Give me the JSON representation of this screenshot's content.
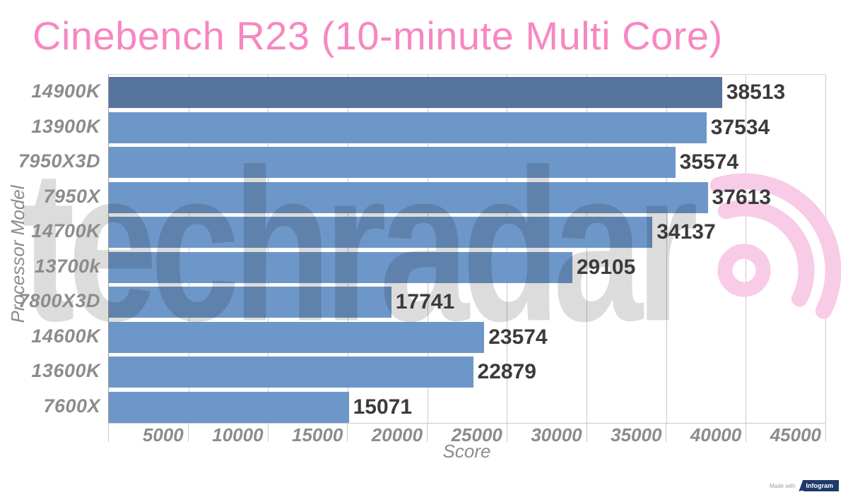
{
  "title": "Cinebench R23 (10-minute Multi Core)",
  "chart_data": {
    "type": "bar",
    "orientation": "horizontal",
    "title": "Cinebench R23 (10-minute Multi Core)",
    "categories": [
      "14900K",
      "13900K",
      "7950X3D",
      "7950X",
      "14700K",
      "13700k",
      "7800X3D",
      "14600K",
      "13600K",
      "7600X"
    ],
    "values": [
      38513,
      37534,
      35574,
      37613,
      34137,
      29105,
      17741,
      23574,
      22879,
      15071
    ],
    "xlabel": "Score",
    "ylabel": "Processor Model",
    "xlim": [
      0,
      45000
    ],
    "xticks": [
      5000,
      10000,
      15000,
      20000,
      25000,
      30000,
      35000,
      40000,
      45000
    ],
    "grid": "vertical",
    "legend": false,
    "highlight_index": 0,
    "colors": {
      "bar": "#6e97c9",
      "highlight_bar": "#56749d",
      "title": "#f787c1",
      "value_label": "#3b3b3b",
      "category_label": "#8c8c8c",
      "tick_label": "#8c8c8c",
      "axis_title": "#8c8c8c",
      "gridline": "#c9c9c9"
    }
  },
  "watermark": {
    "text": "techradar",
    "logo": "radar-signal-icon",
    "logo_color": "#f8cbe7"
  },
  "footer": {
    "made_with_label": "Made with",
    "brand_label": "Infogram",
    "brand_color": "#1e3a68"
  }
}
